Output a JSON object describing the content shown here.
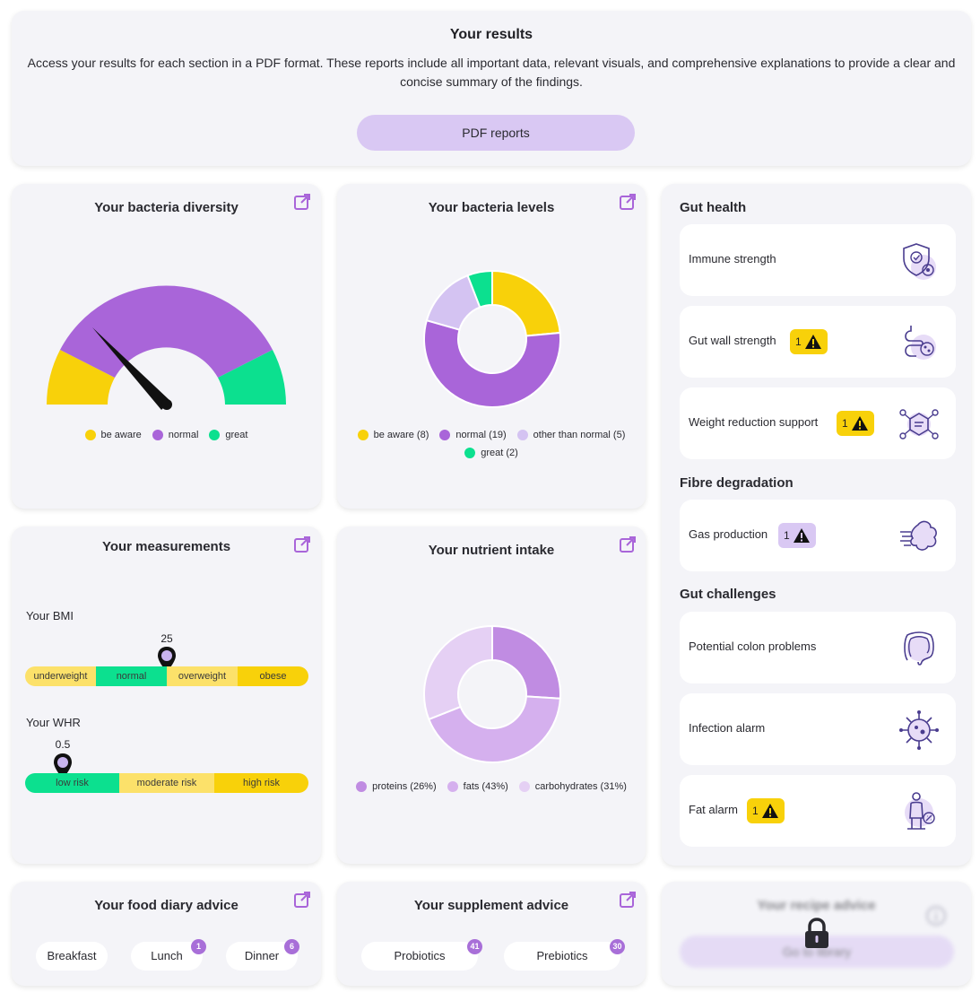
{
  "results": {
    "title": "Your results",
    "description": "Access your results for each section in a PDF format. These reports include all important data, relevant visuals, and comprehensive explanations to provide a clear and concise summary of the findings.",
    "button_label": "PDF reports"
  },
  "diversity": {
    "title": "Your bacteria diversity",
    "legend": [
      "be aware",
      "normal",
      "great"
    ],
    "colors": [
      "#f8d10a",
      "#a965d9",
      "#0ce08f"
    ],
    "gauge_value": 0.24
  },
  "levels": {
    "title": "Your bacteria levels",
    "legend": [
      "be aware (8)",
      "normal (19)",
      "other than normal (5)",
      "great (2)"
    ],
    "colors": [
      "#f8d10a",
      "#a965d9",
      "#d4c3f2",
      "#0ce08f"
    ]
  },
  "measurements": {
    "title": "Your measurements",
    "bmi_label": "Your BMI",
    "bmi_value": "25",
    "bmi_segments": [
      "underweight",
      "normal",
      "overweight",
      "obese"
    ],
    "whr_label": "Your WHR",
    "whr_value": "0.5",
    "whr_segments": [
      "low risk",
      "moderate risk",
      "high risk"
    ]
  },
  "nutrient": {
    "title": "Your nutrient intake",
    "legend": [
      "proteins (26%)",
      "fats (43%)",
      "carbohydrates (31%)"
    ],
    "colors": [
      "#c08ce2",
      "#d5b0ee",
      "#e5d0f4"
    ]
  },
  "gut_health": {
    "title": "Gut health",
    "items": [
      {
        "label": "Immune strength",
        "badge": ""
      },
      {
        "label": "Gut wall strength",
        "badge": "1"
      },
      {
        "label": "Weight reduction support",
        "badge": "1"
      }
    ]
  },
  "fibre": {
    "title": "Fibre degradation",
    "items": [
      {
        "label": "Gas production",
        "badge": "1"
      }
    ]
  },
  "challenges": {
    "title": "Gut challenges",
    "items": [
      {
        "label": "Potential colon problems",
        "badge": ""
      },
      {
        "label": "Infection alarm",
        "badge": ""
      },
      {
        "label": "Fat alarm",
        "badge": "1"
      }
    ]
  },
  "food_diary": {
    "title": "Your food diary advice",
    "chips": [
      {
        "label": "Breakfast",
        "count": ""
      },
      {
        "label": "Lunch",
        "count": "1"
      },
      {
        "label": "Dinner",
        "count": "6"
      }
    ]
  },
  "supplement": {
    "title": "Your supplement advice",
    "chips": [
      {
        "label": "Probiotics",
        "count": "41"
      },
      {
        "label": "Prebiotics",
        "count": "30"
      }
    ]
  },
  "recipe": {
    "title": "Your recipe advice",
    "button_label": "Go to library"
  },
  "chart_data": [
    {
      "type": "pie",
      "name": "bacteria levels",
      "categories": [
        "be aware",
        "normal",
        "other than normal",
        "great"
      ],
      "values": [
        8,
        19,
        5,
        2
      ]
    },
    {
      "type": "pie",
      "name": "nutrient intake",
      "categories": [
        "proteins",
        "fats",
        "carbohydrates"
      ],
      "values": [
        26,
        43,
        31
      ]
    }
  ]
}
